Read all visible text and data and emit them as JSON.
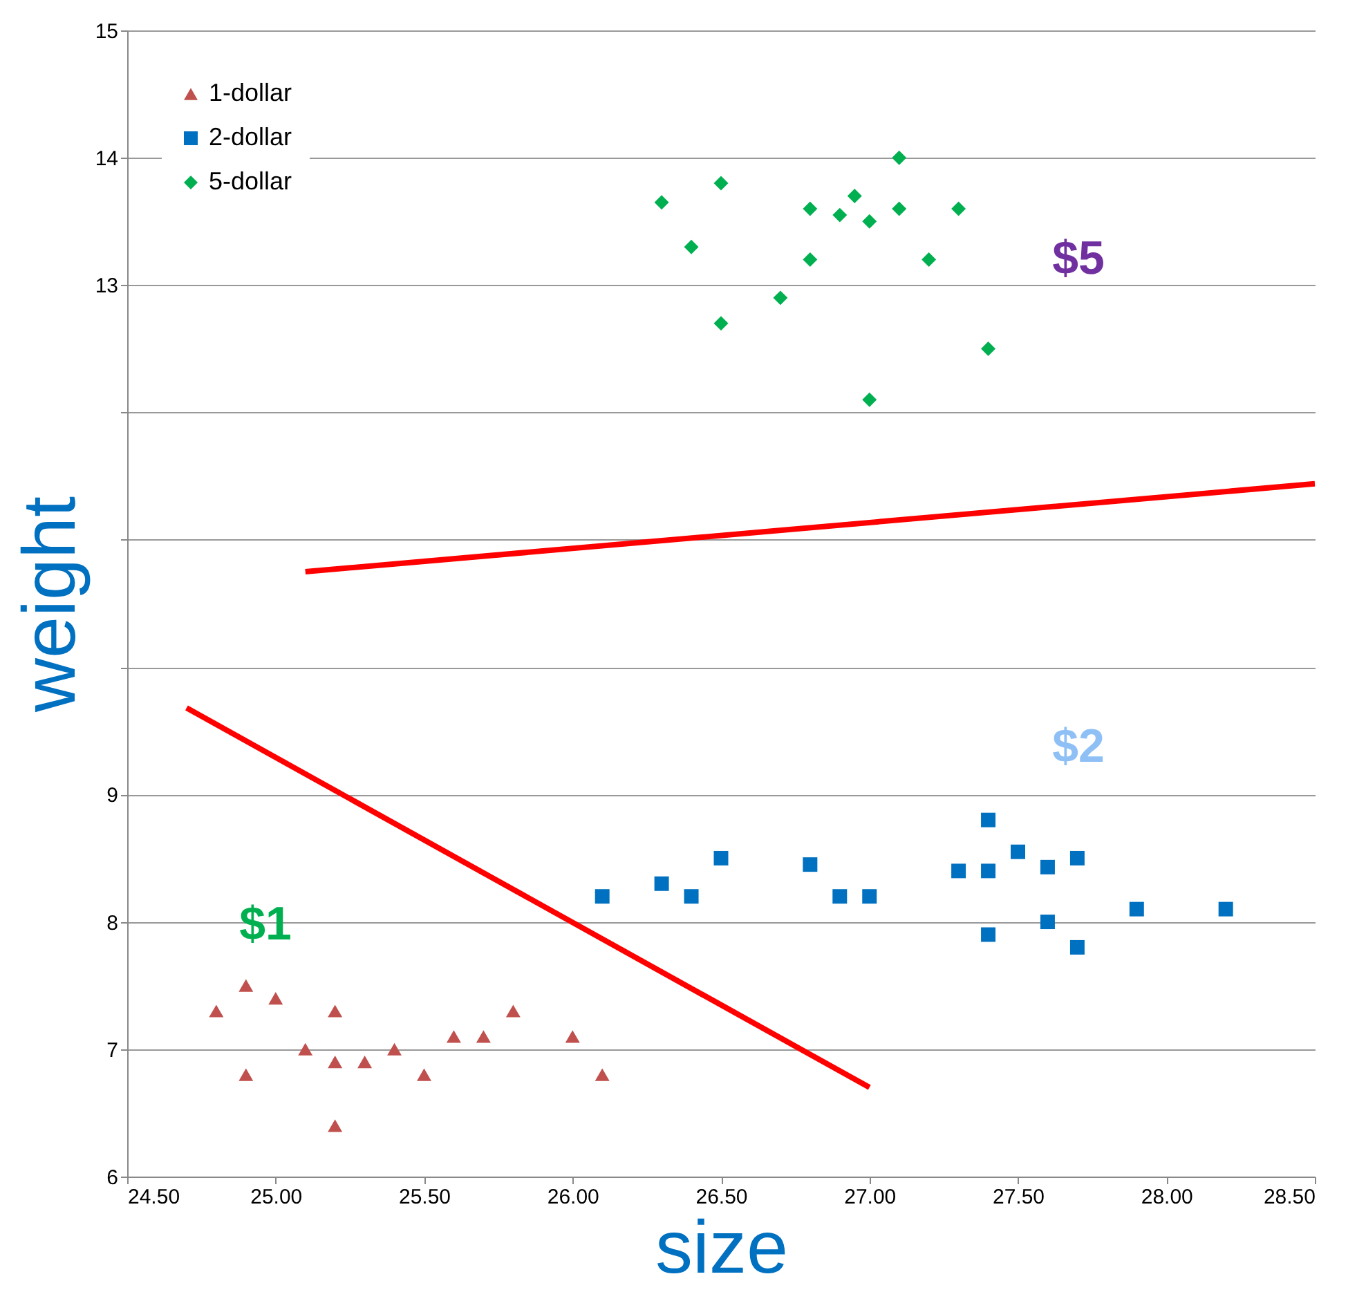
{
  "chart_data": {
    "type": "scatter",
    "xlabel": "size",
    "ylabel": "weight",
    "xlim": [
      24.5,
      28.5
    ],
    "ylim": [
      6,
      15
    ],
    "xticks": [
      {
        "value": 24.5,
        "label": "24.50"
      },
      {
        "value": 25,
        "label": "25.00"
      },
      {
        "value": 25.5,
        "label": "25.50"
      },
      {
        "value": 26,
        "label": "26.00"
      },
      {
        "value": 26.5,
        "label": "26.50"
      },
      {
        "value": 27,
        "label": "27.00"
      },
      {
        "value": 27.5,
        "label": "27.50"
      },
      {
        "value": 28,
        "label": "28.00"
      },
      {
        "value": 28.5,
        "label": "28.50"
      }
    ],
    "yticks": [
      6,
      7,
      8,
      9,
      {
        "value": 10,
        "label": null
      },
      {
        "value": 11,
        "label": null
      },
      {
        "value": 12,
        "label": null
      },
      13,
      14,
      15
    ],
    "grid": "y",
    "legend": "top left",
    "series": [
      {
        "name": "1-dollar",
        "color": "#c0504d",
        "marker": "triangle",
        "x": [
          24.8,
          24.9,
          24.9,
          25.0,
          25.1,
          25.2,
          25.2,
          25.2,
          25.3,
          25.4,
          25.5,
          25.6,
          25.7,
          25.8,
          26.0,
          26.1
        ],
        "values": [
          7.3,
          7.5,
          6.8,
          7.4,
          7.0,
          7.3,
          6.9,
          6.4,
          6.9,
          7.0,
          6.8,
          7.1,
          7.1,
          7.3,
          7.1,
          6.8
        ]
      },
      {
        "name": "2-dollar",
        "color": "#0070c0",
        "marker": "square",
        "x": [
          26.1,
          26.3,
          26.4,
          26.5,
          26.8,
          26.9,
          27.0,
          27.3,
          27.4,
          27.4,
          27.4,
          27.5,
          27.6,
          27.6,
          27.7,
          27.7,
          27.9,
          28.2
        ],
        "values": [
          8.2,
          8.3,
          8.2,
          8.5,
          8.45,
          8.2,
          8.2,
          8.4,
          8.8,
          8.4,
          7.9,
          8.55,
          8.43,
          8.0,
          8.5,
          7.8,
          8.1,
          8.1
        ]
      },
      {
        "name": "5-dollar",
        "color": "#00b050",
        "marker": "diamond",
        "x": [
          26.3,
          26.4,
          26.5,
          26.5,
          26.7,
          26.8,
          26.8,
          26.9,
          26.95,
          27.0,
          27.0,
          27.1,
          27.1,
          27.2,
          27.3,
          27.4
        ],
        "values": [
          13.65,
          13.3,
          13.8,
          12.7,
          12.9,
          13.6,
          13.2,
          13.55,
          13.7,
          13.5,
          12.1,
          14.0,
          13.6,
          13.2,
          13.6,
          12.5
        ]
      },
      {
        "type": "line",
        "color": "#ff0000",
        "x": [
          24.7,
          27.0
        ],
        "values": [
          9.68,
          6.7
        ]
      },
      {
        "type": "line",
        "color": "#ff0000",
        "x": [
          25.1,
          28.5
        ],
        "values": [
          10.75,
          11.44
        ]
      }
    ],
    "annotations": [
      "$1",
      "$2",
      "$5"
    ]
  }
}
